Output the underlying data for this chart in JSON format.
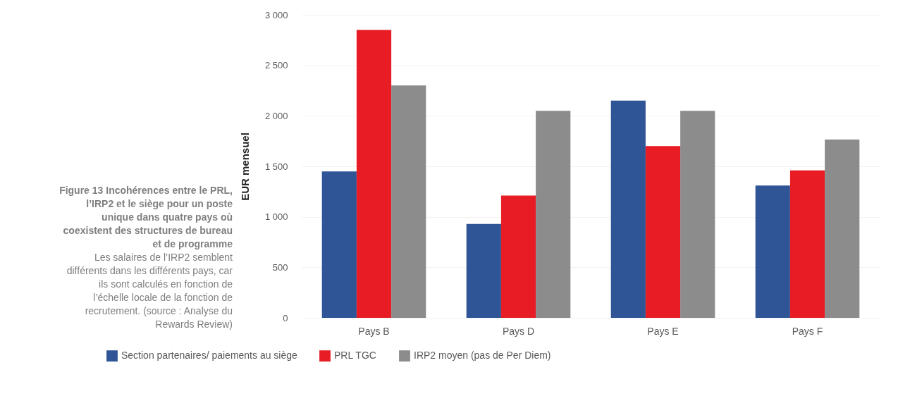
{
  "chart_data": {
    "type": "bar",
    "title": "Figure 13 Incohérences entre le PRL, l’IRP2 et le siège pour un poste unique dans quatre pays où coexistent des structures de bureau et de programme",
    "annotations": [
      "Les salaires de l’IRP2 semblent différents dans les différents pays, car ils sont calculés en fonction de l’échelle locale de la fonction de recrutement. (source : Analyse du Rewards Review)"
    ],
    "ylabel": "EUR mensuel",
    "categories": [
      "Pays B",
      "Pays D",
      "Pays E",
      "Pays F"
    ],
    "series": [
      {
        "name": "Section partenaires/ paiements au siège",
        "color": "#2f5597",
        "values": [
          1450,
          930,
          2150,
          1310
        ]
      },
      {
        "name": "PRL TGC",
        "color": "#e81c24",
        "values": [
          2850,
          1210,
          1700,
          1460
        ]
      },
      {
        "name": "IRP2 moyen (pas de Per Diem)",
        "color": "#8c8c8c",
        "values": [
          2300,
          2050,
          2050,
          1765
        ]
      }
    ],
    "ylim": [
      0,
      3000
    ],
    "yticks": [
      {
        "value": 0,
        "label": "0"
      },
      {
        "value": 500,
        "label": "500"
      },
      {
        "value": 1000,
        "label": "1 000"
      },
      {
        "value": 1500,
        "label": "1 500"
      },
      {
        "value": 2000,
        "label": "2 000"
      },
      {
        "value": 2500,
        "label": "2 500"
      },
      {
        "value": 3000,
        "label": "3 000"
      }
    ],
    "grid": "y",
    "legend": "bottom"
  }
}
